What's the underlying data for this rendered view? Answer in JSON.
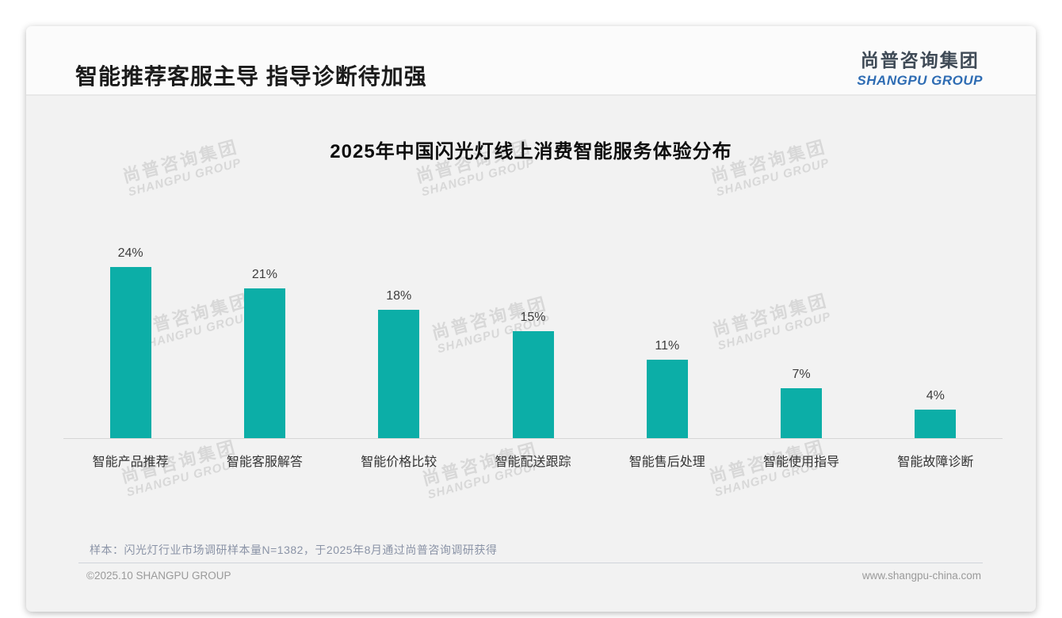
{
  "header": {
    "title": "智能推荐客服主导 指导诊断待加强",
    "logo_cn": "尚普咨询集团",
    "logo_en": "SHANGPU GROUP"
  },
  "watermark": {
    "cn": "尚普咨询集团",
    "en": "SHANGPU GROUP"
  },
  "chart_data": {
    "type": "bar",
    "title": "2025年中国闪光灯线上消费智能服务体验分布",
    "categories": [
      "智能产品推荐",
      "智能客服解答",
      "智能价格比较",
      "智能配送跟踪",
      "智能售后处理",
      "智能使用指导",
      "智能故障诊断"
    ],
    "values": [
      24,
      21,
      18,
      15,
      11,
      7,
      4
    ],
    "value_labels": [
      "24%",
      "21%",
      "18%",
      "15%",
      "11%",
      "7%",
      "4%"
    ],
    "unit": "%",
    "xlabel": "",
    "ylabel": "",
    "ylim": [
      0,
      26
    ],
    "grid": false,
    "legend": false,
    "bar_color": "#0caea7",
    "axis_color": "#d6d6d6"
  },
  "footer": {
    "note": "样本：闪光灯行业市场调研样本量N=1382，于2025年8月通过尚普咨询调研获得",
    "copyright": "©2025.10 SHANGPU GROUP",
    "website": "www.shangpu-china.com"
  }
}
